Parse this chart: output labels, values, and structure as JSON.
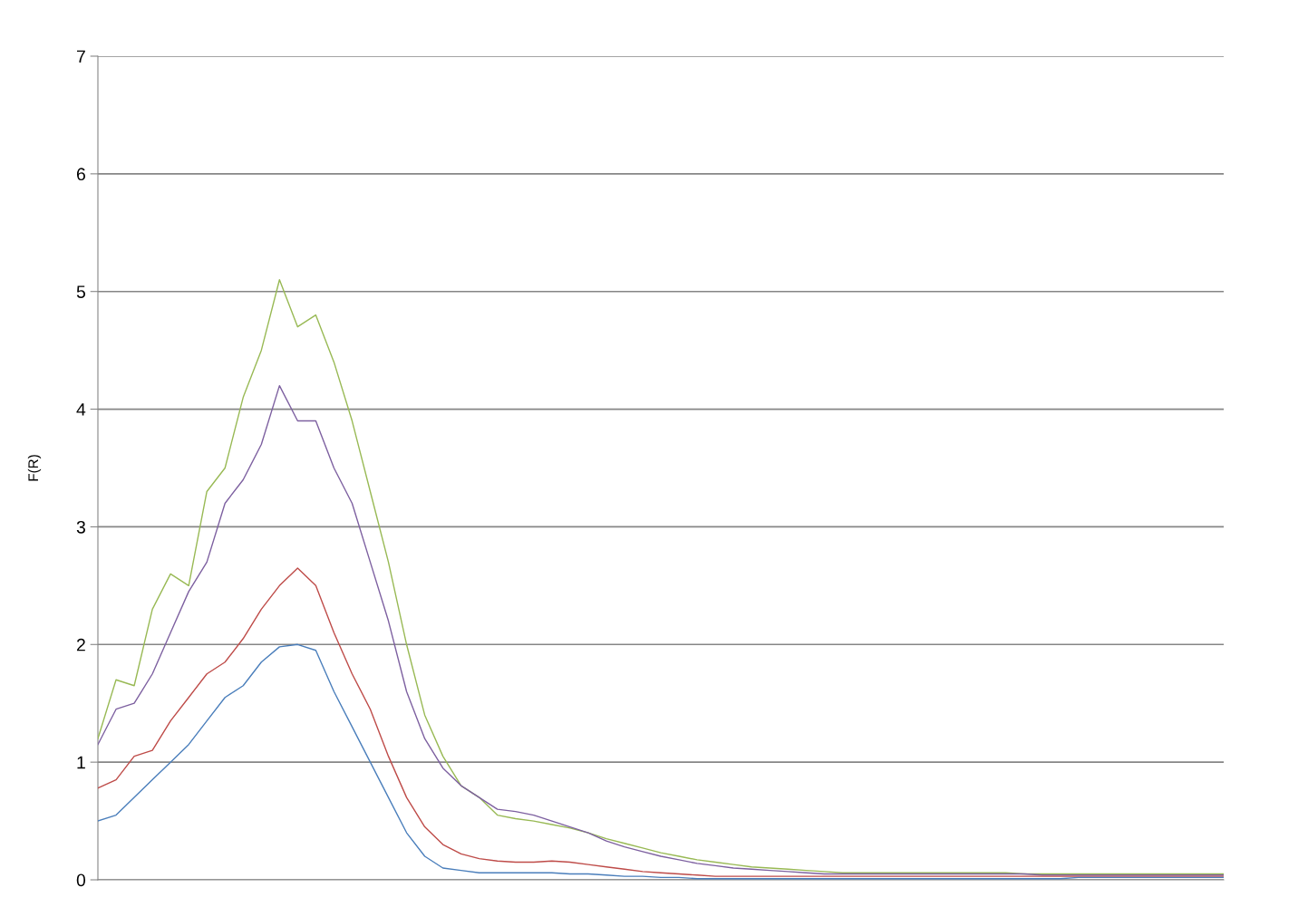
{
  "chart_data": {
    "type": "line",
    "ylabel": "F(R)",
    "categories": [
      null,
      null,
      null,
      null,
      null,
      null,
      null,
      null,
      null,
      null,
      null,
      null,
      null,
      null,
      null,
      null,
      null,
      null,
      null,
      null,
      null,
      null,
      null,
      null,
      null,
      null,
      null,
      null,
      null,
      null,
      null,
      null,
      null,
      null,
      null,
      null,
      null,
      null,
      null,
      null,
      null,
      null,
      null,
      null,
      null,
      null,
      null,
      null,
      null,
      null,
      null,
      null,
      null,
      null,
      null,
      null,
      null,
      null,
      null,
      null,
      null,
      null,
      null
    ],
    "ylim": [
      0,
      7
    ],
    "yticks": [
      0,
      1,
      2,
      3,
      4,
      5,
      6,
      7
    ],
    "grid": "y",
    "tick_labels": "y",
    "marker": "none",
    "line_style": "solid",
    "series": [
      {
        "color": "#98b954",
        "values": [
          1.2,
          1.7,
          1.65,
          2.3,
          2.6,
          2.5,
          3.3,
          3.5,
          4.1,
          4.5,
          5.1,
          4.7,
          4.8,
          4.4,
          3.9,
          3.3,
          2.7,
          2.0,
          1.4,
          1.05,
          0.8,
          0.7,
          0.55,
          0.52,
          0.5,
          0.47,
          0.44,
          0.4,
          0.35,
          0.31,
          0.27,
          0.23,
          0.2,
          0.17,
          0.15,
          0.13,
          0.11,
          0.1,
          0.09,
          0.08,
          0.07,
          0.06,
          0.06,
          0.06,
          0.06,
          0.06,
          0.06,
          0.06,
          0.06,
          0.06,
          0.06,
          0.05,
          0.05,
          0.05,
          0.05,
          0.05,
          0.05,
          0.05,
          0.05,
          0.05,
          0.05,
          0.05,
          0.05
        ]
      },
      {
        "color": "#7d60a0",
        "values": [
          1.15,
          1.45,
          1.5,
          1.75,
          2.1,
          2.45,
          2.7,
          3.2,
          3.4,
          3.7,
          4.2,
          3.9,
          3.9,
          3.5,
          3.2,
          2.7,
          2.2,
          1.6,
          1.2,
          0.95,
          0.8,
          0.7,
          0.6,
          0.58,
          0.55,
          0.5,
          0.45,
          0.4,
          0.33,
          0.28,
          0.24,
          0.2,
          0.17,
          0.14,
          0.12,
          0.1,
          0.09,
          0.08,
          0.07,
          0.06,
          0.05,
          0.05,
          0.05,
          0.05,
          0.05,
          0.05,
          0.05,
          0.05,
          0.05,
          0.05,
          0.05,
          0.05,
          0.04,
          0.04,
          0.04,
          0.04,
          0.04,
          0.04,
          0.04,
          0.04,
          0.04,
          0.04,
          0.04
        ]
      },
      {
        "color": "#be4b48",
        "values": [
          0.78,
          0.85,
          1.05,
          1.1,
          1.35,
          1.55,
          1.75,
          1.85,
          2.05,
          2.3,
          2.5,
          2.65,
          2.5,
          2.1,
          1.75,
          1.45,
          1.05,
          0.7,
          0.45,
          0.3,
          0.22,
          0.18,
          0.16,
          0.15,
          0.15,
          0.16,
          0.15,
          0.13,
          0.11,
          0.09,
          0.07,
          0.06,
          0.05,
          0.04,
          0.03,
          0.03,
          0.03,
          0.03,
          0.03,
          0.03,
          0.03,
          0.03,
          0.03,
          0.03,
          0.03,
          0.03,
          0.03,
          0.03,
          0.03,
          0.03,
          0.03,
          0.03,
          0.03,
          0.03,
          0.03,
          0.03,
          0.03,
          0.03,
          0.03,
          0.03,
          0.03,
          0.03,
          0.03
        ]
      },
      {
        "color": "#4a7ebb",
        "values": [
          0.5,
          0.55,
          0.7,
          0.85,
          1.0,
          1.15,
          1.35,
          1.55,
          1.65,
          1.85,
          1.98,
          2.0,
          1.95,
          1.6,
          1.3,
          1.0,
          0.7,
          0.4,
          0.2,
          0.1,
          0.08,
          0.06,
          0.06,
          0.06,
          0.06,
          0.06,
          0.05,
          0.05,
          0.04,
          0.03,
          0.03,
          0.02,
          0.02,
          0.01,
          0.01,
          0.01,
          0.01,
          0.01,
          0.01,
          0.01,
          0.01,
          0.01,
          0.01,
          0.01,
          0.01,
          0.01,
          0.01,
          0.01,
          0.01,
          0.01,
          0.01,
          0.01,
          0.01,
          0.01,
          0.02,
          0.02,
          0.02,
          0.02,
          0.02,
          0.02,
          0.02,
          0.02,
          0.02
        ]
      }
    ]
  }
}
